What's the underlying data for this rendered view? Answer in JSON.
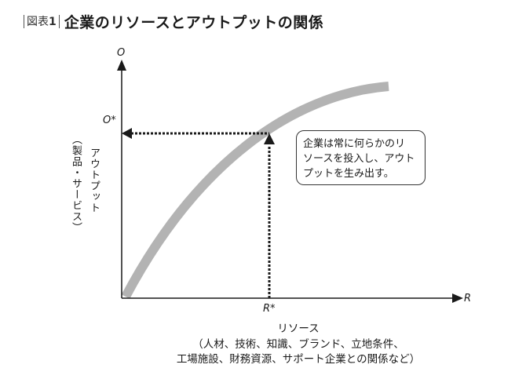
{
  "header": {
    "figure_label_prefix": "図表",
    "figure_number": "1",
    "title": "企業のリソースとアウトプットの関係"
  },
  "axes": {
    "y_symbol": "O",
    "x_symbol": "R",
    "y_marker": "O*",
    "x_marker": "R*",
    "y_label_main": "アウトプット",
    "y_label_sub": "（製品・サービス）",
    "x_label_main": "リソース",
    "x_label_line1": "（人材、技術、知識、ブランド、立地条件、",
    "x_label_line2": "工場施設、財務資源、サポート企業との関係など）"
  },
  "callout": {
    "line1": "企業は常に何らかのリ",
    "line2": "ソースを投入し、アウト",
    "line3": "プットを生み出す。"
  },
  "colors": {
    "curve": "#b3b3b3",
    "ink": "#1a1a1a"
  }
}
